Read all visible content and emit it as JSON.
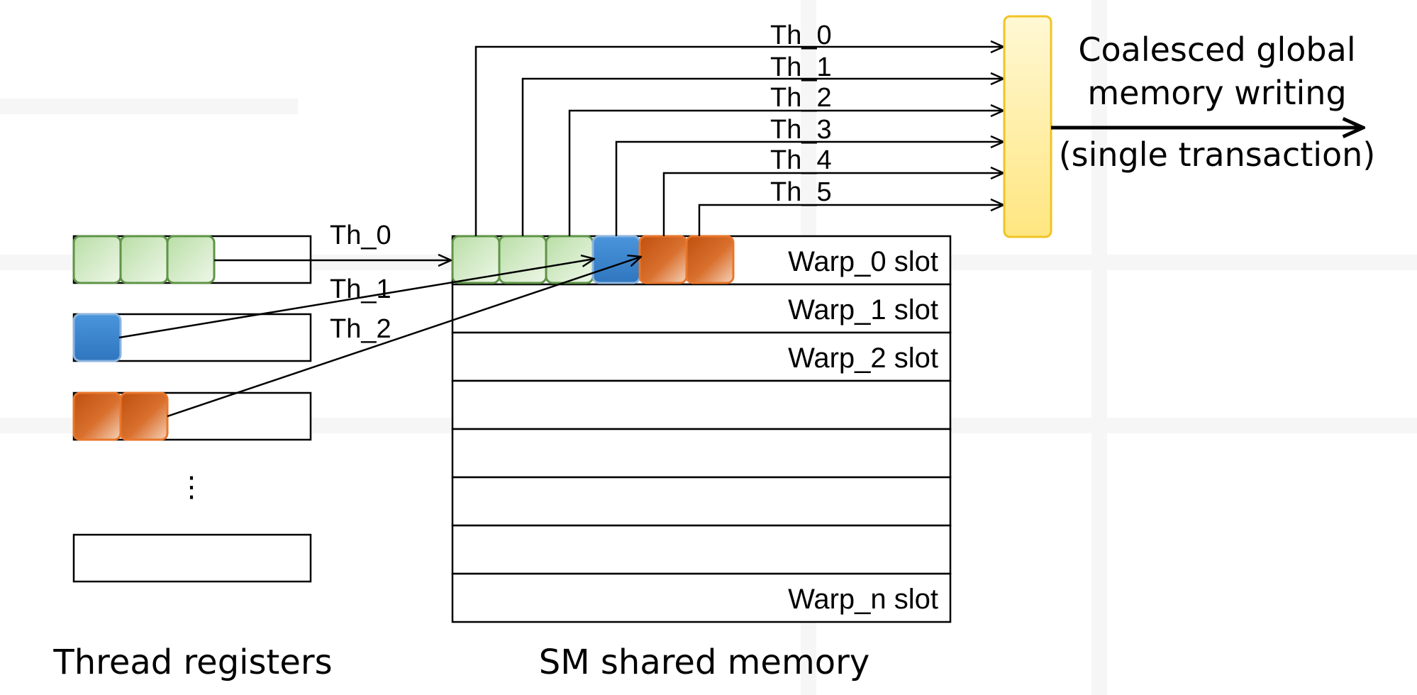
{
  "registers": {
    "caption": "Thread registers",
    "ellipsis": "⋮"
  },
  "shared_memory": {
    "caption": "SM shared memory",
    "slots": [
      "Warp_0 slot",
      "Warp_1 slot",
      "Warp_2 slot",
      "",
      "",
      "",
      "",
      "Warp_n slot"
    ]
  },
  "thread_labels": [
    "Th_0",
    "Th_1",
    "Th_2"
  ],
  "global_thread_labels": [
    "Th_0",
    "Th_1",
    "Th_2",
    "Th_3",
    "Th_4",
    "Th_5"
  ],
  "output": {
    "line1": "Coalesced global",
    "line2": "memory writing",
    "line3": "(single transaction)"
  },
  "colors": {
    "green_fill": "#c6e5b4",
    "green_stroke": "#5e9447",
    "blue_fill": "#3a86d2",
    "blue_stroke": "#8cb4de",
    "orange_fill": "#cc5a12",
    "orange_stroke": "#e8762b",
    "buffer_fill": "#ffec99",
    "buffer_stroke": "#f0c426"
  }
}
